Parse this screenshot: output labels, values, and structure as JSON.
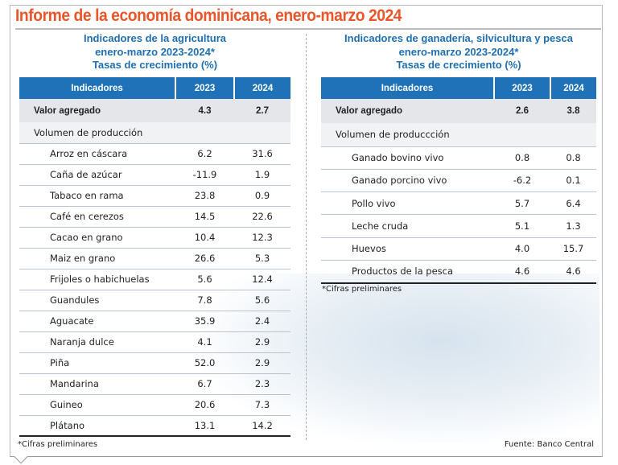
{
  "title": "Informe de la economía dominicana, enero-marzo 2024",
  "left": {
    "subtitle": [
      "Indicadores de la agricultura",
      "enero-marzo 2023-2024*",
      "Tasas de crecimiento (%)"
    ],
    "headers": [
      "Indicadores",
      "2023",
      "2024"
    ],
    "valor": {
      "label": "Valor agregado",
      "v2023": "4.3",
      "v2024": "2.7"
    },
    "volumen": "Volumen de producción",
    "rows": [
      [
        "Arroz en cáscara",
        "6.2",
        "31.6"
      ],
      [
        "Caña de azúcar",
        "-11.9",
        "1.9"
      ],
      [
        "Tabaco en rama",
        "23.8",
        "0.9"
      ],
      [
        "Café en cerezos",
        "14.5",
        "22.6"
      ],
      [
        "Cacao en grano",
        "10.4",
        "12.3"
      ],
      [
        "Maiz en grano",
        "26.6",
        "5.3"
      ],
      [
        "Frijoles o habichuelas",
        "5.6",
        "12.4"
      ],
      [
        "Guandules",
        "7.8",
        "5.6"
      ],
      [
        "Aguacate",
        "35.9",
        "2.4"
      ],
      [
        "Naranja dulce",
        "4.1",
        "2.9"
      ],
      [
        "Piña",
        "52.0",
        "2.9"
      ],
      [
        "Mandarina",
        "6.7",
        "2.3"
      ],
      [
        "Guineo",
        "20.6",
        "7.3"
      ],
      [
        "Plátano",
        "13.1",
        "14.2"
      ]
    ],
    "footnote": "*Cifras preliminares"
  },
  "right": {
    "subtitle": [
      "Indicadores de ganadería, silvicultura y pesca",
      "enero-marzo 2023-2024*",
      "Tasas de crecimiento (%)"
    ],
    "headers": [
      "Indicadores",
      "2023",
      "2024"
    ],
    "valor": {
      "label": "Valor agregado",
      "v2023": "2.6",
      "v2024": "3.8"
    },
    "volumen": "Volumen de produccción",
    "rows": [
      [
        "Ganado bovino vivo",
        "0.8",
        "0.8"
      ],
      [
        "Ganado porcino vivo",
        "-6.2",
        "0.1"
      ],
      [
        "Pollo vivo",
        "5.7",
        "6.4"
      ],
      [
        "Leche cruda",
        "5.1",
        "1.3"
      ],
      [
        "Huevos",
        "4.0",
        "15.7"
      ],
      [
        "Productos de la pesca",
        "4.6",
        "4.6"
      ]
    ],
    "footnote": "*Cifras preliminares"
  },
  "source": "Fuente: Banco Central",
  "colors": {
    "title": "#e8562a",
    "subtitle": "#1f6fb0",
    "header": "#1f72b8"
  }
}
